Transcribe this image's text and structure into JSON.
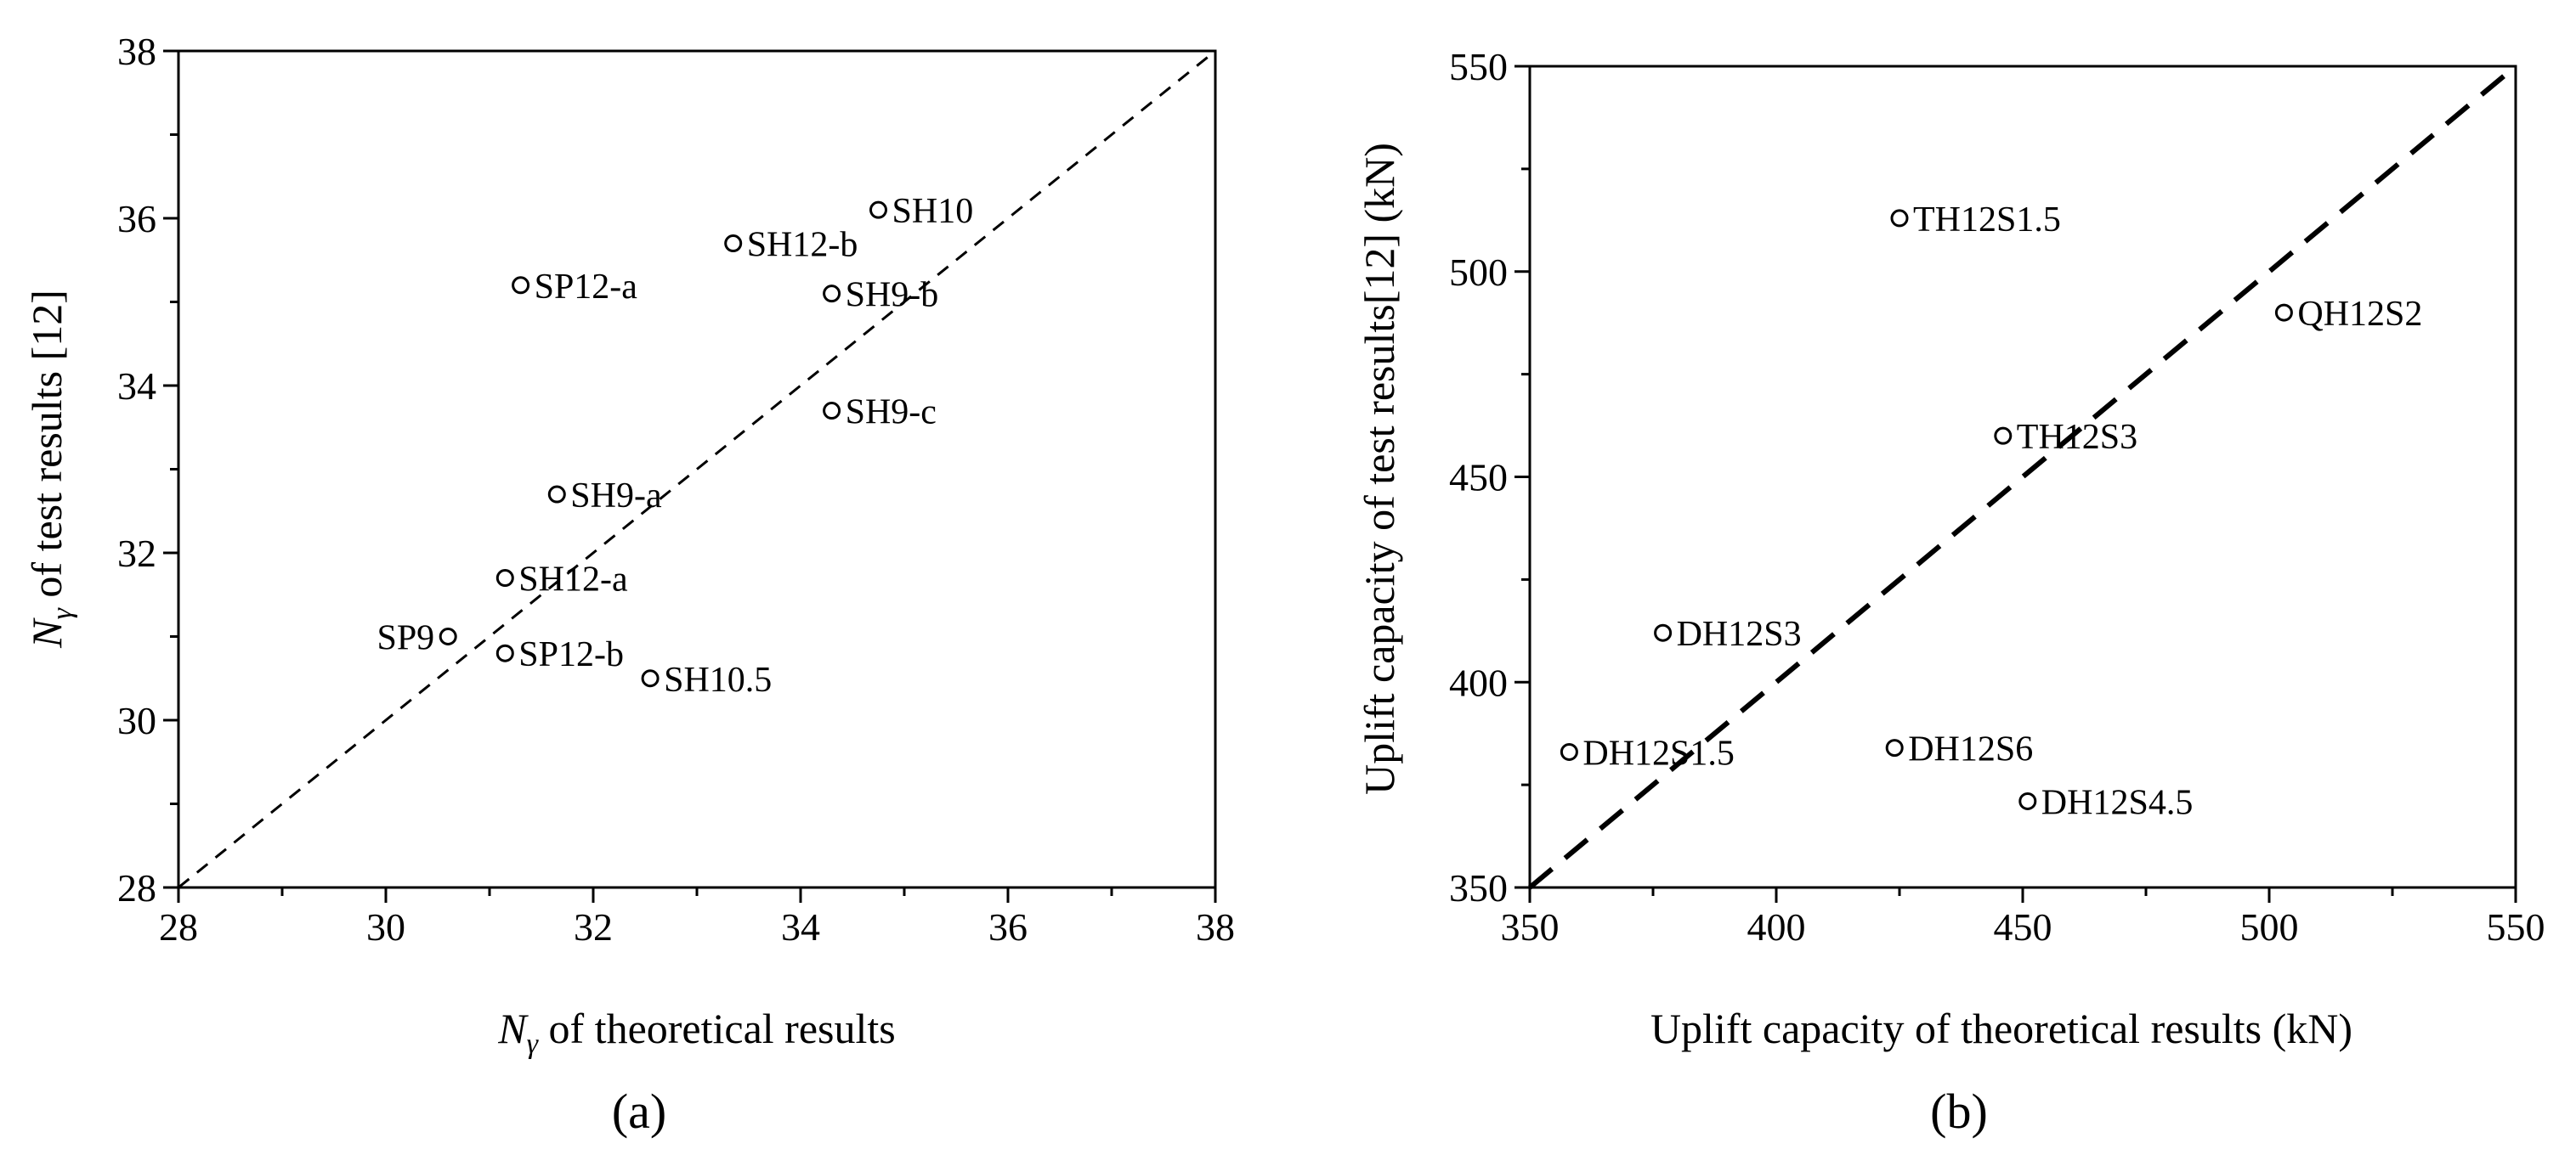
{
  "chart_data": [
    {
      "type": "scatter",
      "panel_label": "(a)",
      "xlabel": {
        "symbol": "N",
        "sub": "γ",
        "rest": " of theoretical results"
      },
      "ylabel": {
        "symbol": "N",
        "sub": "γ",
        "rest": " of test results [12]"
      },
      "xlim": [
        28,
        38
      ],
      "ylim": [
        28,
        38
      ],
      "xticks": [
        "28",
        "30",
        "32",
        "34",
        "36",
        "38"
      ],
      "yticks": [
        "28",
        "30",
        "32",
        "34",
        "36",
        "38"
      ],
      "reference_line": "y = x (dashed)",
      "grid": false,
      "points": [
        {
          "label": "SH10",
          "x": 34.75,
          "y": 36.1
        },
        {
          "label": "SH12-b",
          "x": 33.35,
          "y": 35.7
        },
        {
          "label": "SP12-a",
          "x": 31.3,
          "y": 35.2
        },
        {
          "label": "SH9-b",
          "x": 34.3,
          "y": 35.1
        },
        {
          "label": "SH9-c",
          "x": 34.3,
          "y": 33.7
        },
        {
          "label": "SH9-a",
          "x": 31.65,
          "y": 32.7
        },
        {
          "label": "SH12-a",
          "x": 31.15,
          "y": 31.7
        },
        {
          "label": "SP9",
          "x": 30.6,
          "y": 31.0
        },
        {
          "label": "SP12-b",
          "x": 31.15,
          "y": 30.8
        },
        {
          "label": "SH10.5",
          "x": 32.55,
          "y": 30.5
        }
      ]
    },
    {
      "type": "scatter",
      "panel_label": "(b)",
      "xlabel": "Uplift capacity of theoretical results (kN)",
      "ylabel": "Uplift capacity of test results[12] (kN)",
      "xlim": [
        350,
        550
      ],
      "ylim": [
        350,
        550
      ],
      "xticks": [
        "350",
        "400",
        "450",
        "500",
        "550"
      ],
      "yticks": [
        "350",
        "400",
        "450",
        "500",
        "550"
      ],
      "reference_line": "y = x (dashed)",
      "grid": false,
      "points": [
        {
          "label": "TH12S1.5",
          "x": 425,
          "y": 513
        },
        {
          "label": "QH12S2",
          "x": 503,
          "y": 490
        },
        {
          "label": "TH12S3",
          "x": 446,
          "y": 460
        },
        {
          "label": "DH12S3",
          "x": 377,
          "y": 412
        },
        {
          "label": "DH12S1.5",
          "x": 358,
          "y": 383
        },
        {
          "label": "DH12S6",
          "x": 424,
          "y": 384
        },
        {
          "label": "DH12S4.5",
          "x": 451,
          "y": 371
        }
      ]
    }
  ]
}
